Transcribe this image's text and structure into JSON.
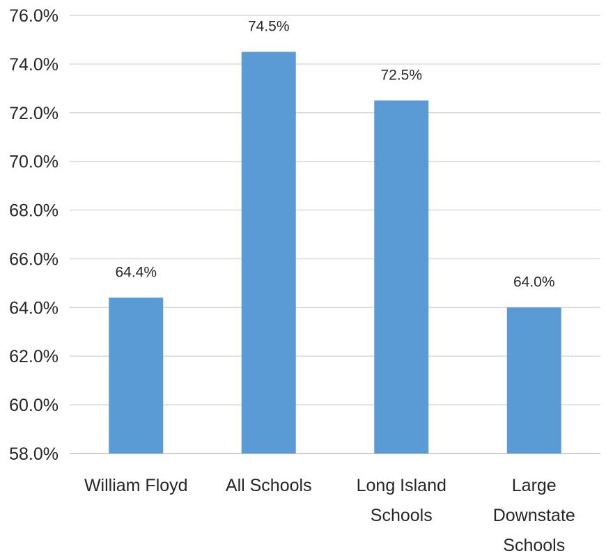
{
  "chart_data": {
    "type": "bar",
    "categories": [
      [
        "William Floyd"
      ],
      [
        "All Schools"
      ],
      [
        "Long Island",
        "Schools"
      ],
      [
        "Large",
        "Downstate",
        "Schools"
      ]
    ],
    "values": [
      64.4,
      74.5,
      72.5,
      64.0
    ],
    "data_labels": [
      "64.4%",
      "74.5%",
      "72.5%",
      "64.0%"
    ],
    "ylim": [
      58.0,
      76.0
    ],
    "ytick_values": [
      58,
      60,
      62,
      64,
      66,
      68,
      70,
      72,
      74,
      76
    ],
    "ytick_labels": [
      "58.0%",
      "60.0%",
      "62.0%",
      "64.0%",
      "66.0%",
      "68.0%",
      "70.0%",
      "72.0%",
      "74.0%",
      "76.0%"
    ],
    "grid": true,
    "legend": "none",
    "colors": {
      "bar": "#5b9bd5",
      "grid": "#d9d9d9",
      "text": "#262626"
    }
  }
}
